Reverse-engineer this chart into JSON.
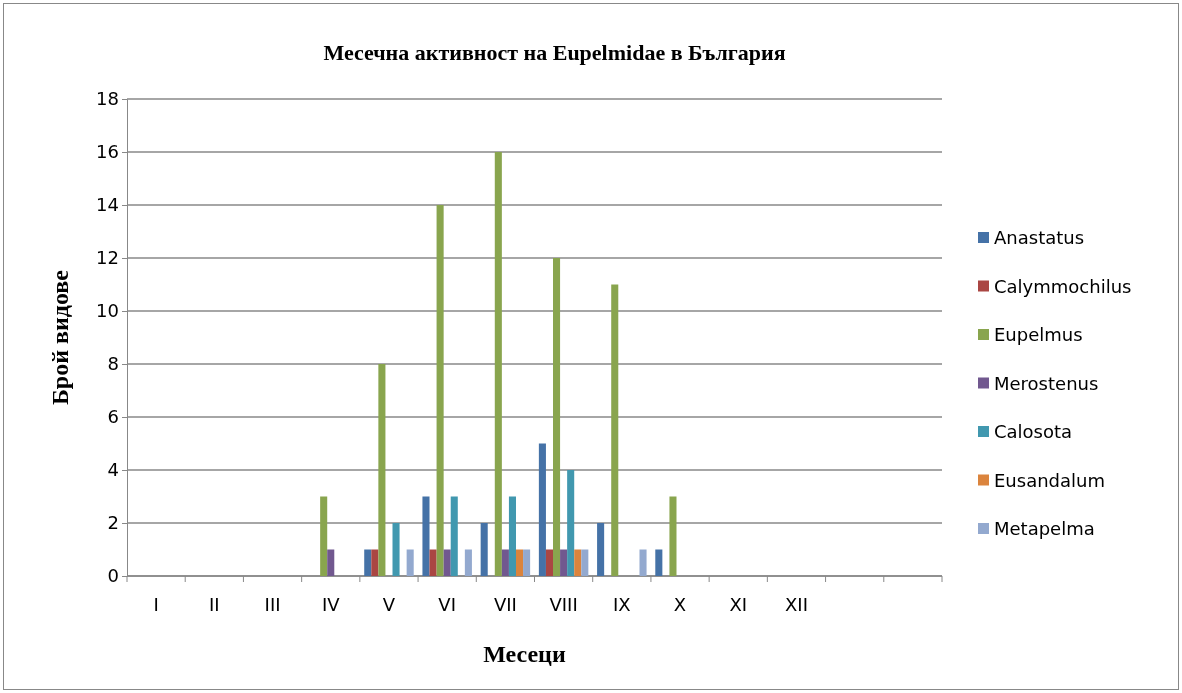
{
  "chart_data": {
    "type": "bar",
    "title": "Месечна активност на Eupelmidae в България",
    "xlabel": "Месеци",
    "ylabel": "Брой видове",
    "categories": [
      "I",
      "II",
      "III",
      "IV",
      "V",
      "VI",
      "VII",
      "VIII",
      "IX",
      "X",
      "XI",
      "XII",
      null,
      null
    ],
    "series": [
      {
        "name": "Anastatus",
        "color": "#4572a7",
        "values": [
          0,
          0,
          0,
          0,
          1,
          3,
          2,
          5,
          2,
          1,
          0,
          0,
          0,
          0
        ]
      },
      {
        "name": "Calymmochilus",
        "color": "#aa4643",
        "values": [
          0,
          0,
          0,
          0,
          1,
          1,
          0,
          1,
          0,
          0,
          0,
          0,
          0,
          0
        ]
      },
      {
        "name": "Eupelmus",
        "color": "#89a54e",
        "values": [
          0,
          0,
          0,
          3,
          8,
          14,
          16,
          12,
          11,
          3,
          0,
          0,
          0,
          0
        ]
      },
      {
        "name": "Merostenus",
        "color": "#71588f",
        "values": [
          0,
          0,
          0,
          1,
          0,
          1,
          1,
          1,
          0,
          0,
          0,
          0,
          0,
          0
        ]
      },
      {
        "name": "Calosota",
        "color": "#4198af",
        "values": [
          0,
          0,
          0,
          0,
          2,
          3,
          3,
          4,
          0,
          0,
          0,
          0,
          0,
          0
        ]
      },
      {
        "name": "Eusandalum",
        "color": "#db843d",
        "values": [
          0,
          0,
          0,
          0,
          0,
          0,
          1,
          1,
          0,
          0,
          0,
          0,
          0,
          0
        ]
      },
      {
        "name": "Metapelma",
        "color": "#93a9cf",
        "values": [
          0,
          0,
          0,
          0,
          1,
          1,
          1,
          1,
          1,
          0,
          0,
          0,
          0,
          0
        ]
      }
    ],
    "ylim": [
      0,
      18
    ],
    "yticks": [
      0,
      2,
      4,
      6,
      8,
      10,
      12,
      14,
      16,
      18
    ],
    "grid": "y",
    "legend": "right"
  }
}
